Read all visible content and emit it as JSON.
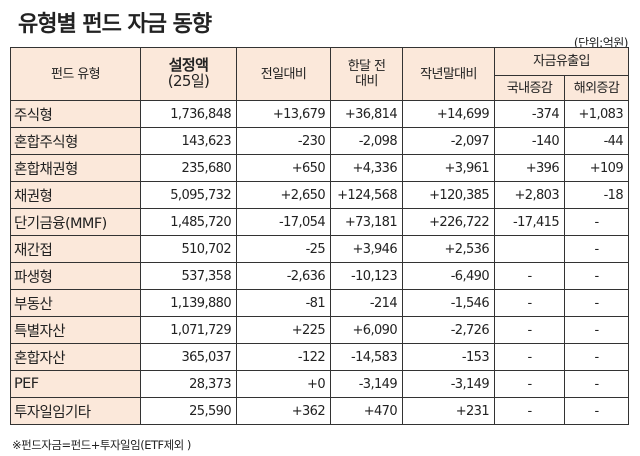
{
  "title": "유형별 펀드 자금 동향",
  "unit": "(단위:억원)",
  "headers": {
    "type": "펀드 유형",
    "amount": "설정액",
    "amount_sub": "(25일)",
    "prev_day": "전일대비",
    "month_a": "한달 전",
    "month_b": "대비",
    "year_end": "작년말대비",
    "flow": "자금유출입",
    "domestic": "국내증감",
    "overseas": "해외증감"
  },
  "rows": [
    [
      "주식형",
      "1,736,848",
      "+13,679",
      "+36,814",
      "+14,699",
      "-374",
      "+1,083"
    ],
    [
      "혼합주식형",
      "143,623",
      "-230",
      "-2,098",
      "-2,097",
      "-140",
      "-44"
    ],
    [
      "혼합채권형",
      "235,680",
      "+650",
      "+4,336",
      "+3,961",
      "+396",
      "+109"
    ],
    [
      "채권형",
      "5,095,732",
      "+2,650",
      "+124,568",
      "+120,385",
      "+2,803",
      "-18"
    ],
    [
      "단기금융(MMF)",
      "1,485,720",
      "-17,054",
      "+73,181",
      "+226,722",
      "-17,415",
      "-"
    ],
    [
      "재간접",
      "510,702",
      "-25",
      "+3,946",
      "+2,536",
      "",
      "-"
    ],
    [
      "파생형",
      "537,358",
      "-2,636",
      "-10,123",
      "-6,490",
      "-",
      "-"
    ],
    [
      "부동산",
      "1,139,880",
      "-81",
      "-214",
      "-1,546",
      "-",
      "-"
    ],
    [
      "특별자산",
      "1,071,729",
      "+225",
      "+6,090",
      "-2,726",
      "-",
      "-"
    ],
    [
      "혼합자산",
      "365,037",
      "-122",
      "-14,583",
      "-153",
      "-",
      "-"
    ],
    [
      "PEF",
      "28,373",
      "+0",
      "-3,149",
      "-3,149",
      "-",
      "-"
    ],
    [
      "투자일임기타",
      "25,590",
      "+362",
      "+470",
      "+231",
      "-",
      "-"
    ]
  ],
  "footnote": "※펀드자금=펀드+투자일임(ETF제외 )"
}
